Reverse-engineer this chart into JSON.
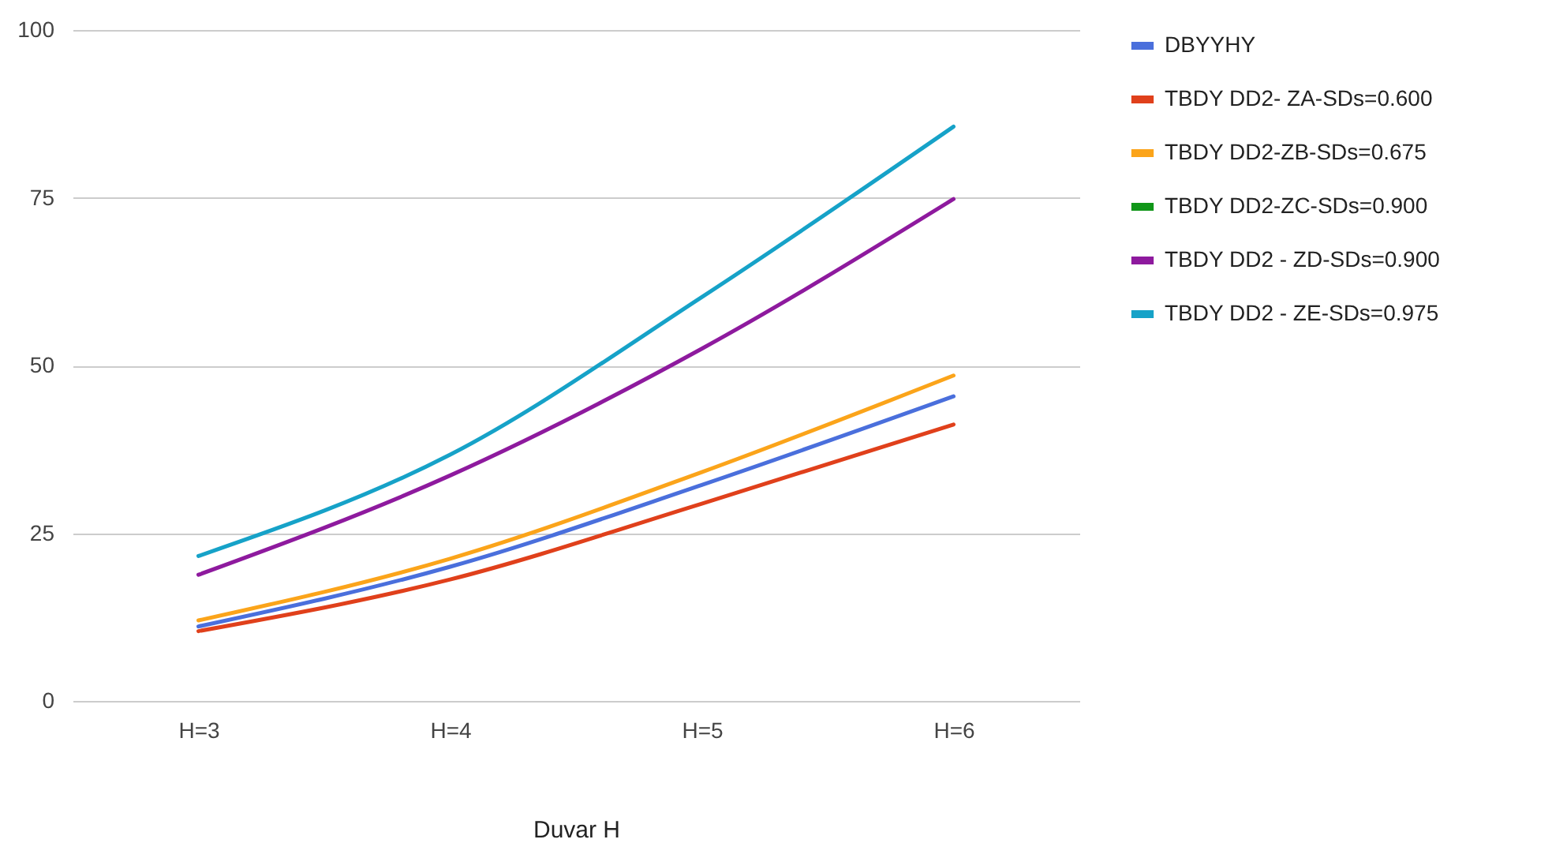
{
  "chart_data": {
    "type": "line",
    "xlabel": "Duvar H",
    "categories": [
      "H=3",
      "H=4",
      "H=5",
      "H=6"
    ],
    "series": [
      {
        "name": "DBYYHY",
        "color": "#4a6fdc",
        "values": [
          11.1,
          20,
          32.2,
          45.4
        ]
      },
      {
        "name": "TBDY DD2- ZA-SDs=0.600",
        "color": "#e0401b",
        "values": [
          10.4,
          18.1,
          29.4,
          41.2
        ]
      },
      {
        "name": "TBDY DD2-ZB-SDs=0.675",
        "color": "#fba41a",
        "values": [
          12,
          21.2,
          34.1,
          48.5
        ]
      },
      {
        "name": "TBDY DD2-ZC-SDs=0.900",
        "color": "#109618",
        "values": [
          null,
          null,
          null,
          null
        ]
      },
      {
        "name": "TBDY DD2 - ZD-SDs=0.900",
        "color": "#8e1a9e",
        "values": [
          18.8,
          33.6,
          52.5,
          74.8
        ]
      },
      {
        "name": "TBDY DD2 - ZE-SDs=0.975",
        "color": "#16a2c8",
        "values": [
          21.6,
          36.7,
          60.2,
          85.6
        ]
      }
    ],
    "ylim": [
      0,
      100
    ],
    "yticks": [
      0,
      25,
      50,
      75,
      100
    ],
    "grid": "y",
    "legend": "right",
    "marker": "none",
    "line_style": "solid"
  }
}
